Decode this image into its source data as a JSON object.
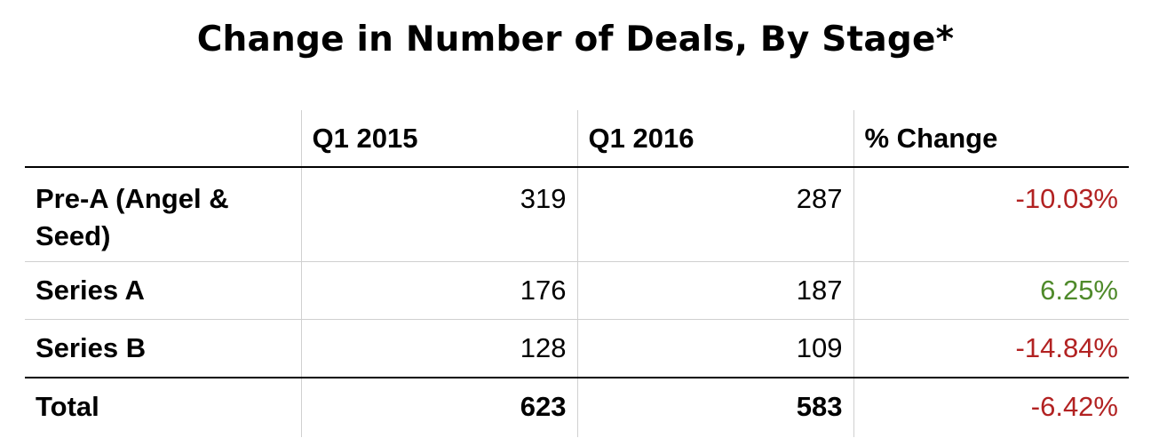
{
  "title": "Change in Number of Deals, By Stage*",
  "colors": {
    "negative": "#b22222",
    "positive": "#4f8a2b"
  },
  "chart_data": {
    "type": "table",
    "title": "Change in Number of Deals, By Stage*",
    "columns": [
      "",
      "Q1 2015",
      "Q1 2016",
      "% Change"
    ],
    "rows": [
      {
        "stage": "Pre-A (Angel & Seed)",
        "q1_2015": "319",
        "q1_2016": "287",
        "pct_change": "-10.03%"
      },
      {
        "stage": "Series A",
        "q1_2015": "176",
        "q1_2016": "187",
        "pct_change": "6.25%"
      },
      {
        "stage": "Series B",
        "q1_2015": "128",
        "q1_2016": "109",
        "pct_change": "-14.84%"
      },
      {
        "stage": "Total",
        "q1_2015": "623",
        "q1_2016": "583",
        "pct_change": "-6.42%"
      }
    ]
  }
}
